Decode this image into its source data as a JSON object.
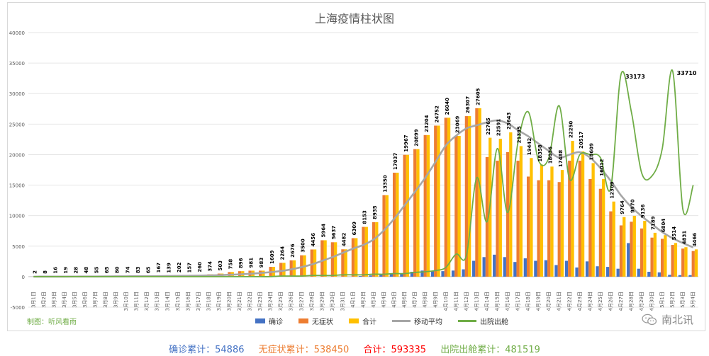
{
  "chart_data": {
    "type": "bar",
    "title": "上海疫情柱状图",
    "xlabel": "",
    "ylabel": "",
    "ylim": [
      -5000,
      40000
    ],
    "yticks": [
      -5000,
      0,
      5000,
      10000,
      15000,
      20000,
      25000,
      30000,
      35000,
      40000
    ],
    "grid": true,
    "legend_position": "bottom",
    "categories": [
      "3月1日",
      "3月2日",
      "3月3日",
      "3月4日",
      "3月5日",
      "3月6日",
      "3月7日",
      "3月8日",
      "3月9日",
      "3月10日",
      "3月11日",
      "3月12日",
      "3月13日",
      "3月14日",
      "3月15日",
      "3月16日",
      "3月17日",
      "3月18日",
      "3月19日",
      "3月20日",
      "3月21日",
      "3月22日",
      "3月23日",
      "3月24日",
      "3月25日",
      "3月26日",
      "3月27日",
      "3月28日",
      "3月29日",
      "3月30日",
      "3月31日",
      "4月1日",
      "4月2日",
      "4月3日",
      "4月4日",
      "4月5日",
      "4月6日",
      "4月7日",
      "4月8日",
      "4月9日",
      "4月10日",
      "4月11日",
      "4月12日",
      "4月13日",
      "4月14日",
      "4月15日",
      "4月16日",
      "4月17日",
      "4月18日",
      "4月19日",
      "4月20日",
      "4月21日",
      "4月22日",
      "4月23日",
      "4月24日",
      "4月25日",
      "4月26日",
      "4月27日",
      "4月28日",
      "4月29日",
      "4月30日",
      "5月1日",
      "5月2日",
      "5月3日",
      "5月4日"
    ],
    "series": [
      {
        "name": "确诊",
        "kind": "bar",
        "color": "#4472c4",
        "values": [
          0,
          0,
          0,
          0,
          0,
          0,
          0,
          0,
          0,
          0,
          0,
          0,
          0,
          0,
          0,
          0,
          0,
          0,
          0,
          0,
          0,
          0,
          0,
          0,
          0,
          0,
          0,
          0,
          0,
          0,
          0,
          0,
          100,
          200,
          300,
          400,
          500,
          800,
          1000,
          900,
          900,
          1000,
          1200,
          2600,
          3200,
          3600,
          3200,
          2400,
          3000,
          2600,
          2700,
          1900,
          2600,
          1500,
          2500,
          1700,
          1600,
          1300,
          5500,
          1300,
          800,
          700,
          300,
          250,
          250
        ]
      },
      {
        "name": "无症状",
        "kind": "bar",
        "color": "#ed7d31",
        "values": [
          2,
          8,
          16,
          19,
          28,
          48,
          55,
          65,
          80,
          74,
          83,
          65,
          167,
          139,
          202,
          157,
          260,
          374,
          503,
          758,
          896,
          981,
          983,
          1609,
          2264,
          2676,
          3500,
          4456,
          5964,
          5637,
          4482,
          6309,
          8153,
          8935,
          13350,
          17037,
          19967,
          20899,
          23204,
          24752,
          26040,
          23069,
          26307,
          27605,
          19600,
          19000,
          20400,
          19000,
          16400,
          15800,
          15800,
          15500,
          19000,
          19000,
          16000,
          14400,
          10700,
          8400,
          9000,
          7900,
          6400,
          6200,
          5200,
          4600,
          4200
        ]
      },
      {
        "name": "合计",
        "kind": "bar",
        "color": "#ffc000",
        "values": [
          2,
          8,
          16,
          19,
          28,
          48,
          55,
          65,
          80,
          74,
          83,
          65,
          167,
          139,
          202,
          157,
          260,
          374,
          503,
          758,
          896,
          981,
          983,
          1609,
          2264,
          2676,
          3500,
          4456,
          5964,
          5637,
          4482,
          6309,
          8153,
          8935,
          13350,
          17037,
          19967,
          20899,
          23204,
          24752,
          26040,
          23069,
          26307,
          27605,
          22765,
          22591,
          23643,
          21395,
          19442,
          18358,
          18036,
          17488,
          22250,
          20517,
          18609,
          16012,
          12309,
          9764,
          9970,
          9136,
          7189,
          6804,
          5514,
          4831,
          4466
        ]
      },
      {
        "name": "移动平均",
        "kind": "line",
        "color": "#a6a6a6",
        "values": [
          2,
          5,
          9,
          11,
          15,
          20,
          25,
          35,
          50,
          60,
          70,
          75,
          90,
          110,
          130,
          145,
          165,
          200,
          240,
          310,
          380,
          470,
          590,
          740,
          920,
          1200,
          1560,
          2000,
          2600,
          3200,
          3900,
          4600,
          5200,
          6100,
          7600,
          9500,
          11700,
          13900,
          16200,
          18800,
          21500,
          23100,
          24300,
          24800,
          25300,
          25600,
          25100,
          24000,
          23000,
          21800,
          20600,
          19500,
          20000,
          20400,
          19500,
          17800,
          15700,
          13300,
          11400,
          9900,
          8600,
          7300,
          6300,
          5500,
          4800
        ]
      },
      {
        "name": "出院出舱",
        "kind": "line",
        "color": "#70ad47",
        "values": [
          0,
          0,
          0,
          0,
          0,
          0,
          0,
          0,
          0,
          0,
          0,
          0,
          0,
          0,
          0,
          0,
          0,
          0,
          0,
          0,
          0,
          0,
          0,
          0,
          100,
          100,
          100,
          200,
          200,
          200,
          300,
          300,
          300,
          400,
          400,
          500,
          500,
          700,
          800,
          1000,
          1500,
          3700,
          3500,
          16200,
          9000,
          21000,
          10500,
          22000,
          27000,
          19000,
          19500,
          28000,
          16000,
          20000,
          20000,
          19500,
          14500,
          33173,
          27000,
          17000,
          16500,
          21000,
          33710,
          11000,
          15000
        ]
      }
    ],
    "data_labels": [
      2,
      8,
      16,
      19,
      28,
      48,
      55,
      65,
      80,
      74,
      83,
      65,
      167,
      139,
      202,
      157,
      260,
      374,
      503,
      758,
      896,
      981,
      983,
      1609,
      2264,
      2676,
      3500,
      4456,
      5964,
      5637,
      4482,
      6309,
      8153,
      8935,
      13350,
      17037,
      19967,
      20899,
      23204,
      24752,
      26040,
      23069,
      26307,
      27605,
      22765,
      22591,
      23643,
      21395,
      19442,
      18358,
      18036,
      17488,
      22250,
      20517,
      18609,
      16012,
      12309,
      9764,
      9970,
      9136,
      7189,
      6804,
      5514,
      4831,
      4466
    ],
    "annotations": [
      "33173",
      "33710"
    ]
  },
  "legend": {
    "confirmed": "确诊",
    "asymptomatic": "无症状",
    "total": "合计",
    "moving_avg": "移动平均",
    "discharged": "出院出舱"
  },
  "credit": "制图：听风看雨",
  "watermark": "南北讯",
  "totals": {
    "confirmed_label": "确诊累计：",
    "confirmed_value": "54886",
    "confirmed_color": "#4472c4",
    "asym_label": "无症状累计：",
    "asym_value": "538450",
    "asym_color": "#ed7d31",
    "total_label": "合计：",
    "total_value": "593335",
    "total_color": "#ff0000",
    "discharged_label": "出院出舱累计：",
    "discharged_value": "481519",
    "discharged_color": "#70ad47"
  }
}
